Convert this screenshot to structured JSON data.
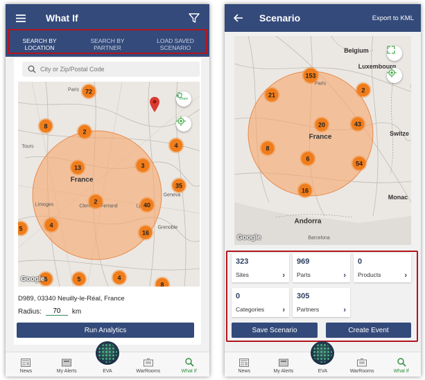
{
  "left": {
    "header": {
      "title": "What If"
    },
    "tabs": [
      {
        "line1": "SEARCH BY",
        "line2": "LOCATION"
      },
      {
        "line1": "SEARCH BY",
        "line2": "PARTNER"
      },
      {
        "line1": "LOAD SAVED",
        "line2": "SCENARIO"
      }
    ],
    "search": {
      "placeholder": "City or Zip/Postal Code"
    },
    "map": {
      "draw_label": "Draw",
      "attribution": "Google",
      "labels": {
        "paris": "Paris",
        "tours": "Tours",
        "france": "France",
        "limoges": "Limoges",
        "clermont": "Clermont-Ferrand",
        "lyon": "Lyon",
        "geneva": "Geneva",
        "grenoble": "Grenoble"
      },
      "clusters": [
        "72",
        "8",
        "2",
        "4",
        "13",
        "3",
        "35",
        "2",
        "40",
        "16",
        "4",
        "5",
        "5",
        "5",
        "4",
        "8"
      ]
    },
    "address": "D989, 03340 Neuilly-le-Réal, France",
    "radius": {
      "label": "Radius:",
      "value": "70",
      "unit": "km"
    },
    "run_button": "Run Analytics",
    "nav": [
      "News",
      "My Alerts",
      "EVA",
      "WarRooms",
      "What If"
    ]
  },
  "right": {
    "header": {
      "title": "Scenario",
      "export": "Export to KML"
    },
    "map": {
      "attribution": "Google",
      "labels": {
        "belgium": "Belgium",
        "luxembourg": "Luxembourg",
        "paris": "Paris",
        "france": "France",
        "switz": "Switze",
        "monaco": "Monac",
        "andorra": "Andorra",
        "barcelona": "Barcelona"
      },
      "clusters": [
        "153",
        "21",
        "2",
        "20",
        "43",
        "8",
        "6",
        "54",
        "16"
      ]
    },
    "tiles": [
      {
        "value": "323",
        "label": "Sites"
      },
      {
        "value": "969",
        "label": "Parts"
      },
      {
        "value": "0",
        "label": "Products"
      },
      {
        "value": "0",
        "label": "Categories"
      },
      {
        "value": "305",
        "label": "Partners"
      }
    ],
    "save_button": "Save Scenario",
    "create_button": "Create Event",
    "nav": [
      "News",
      "My Alerts",
      "EVA",
      "WarRooms",
      "What If"
    ]
  },
  "colors": {
    "appbar": "#344a7a",
    "cluster": "#f07d1b",
    "highlight": "#b3141c",
    "active_nav": "#2e8b3a"
  }
}
